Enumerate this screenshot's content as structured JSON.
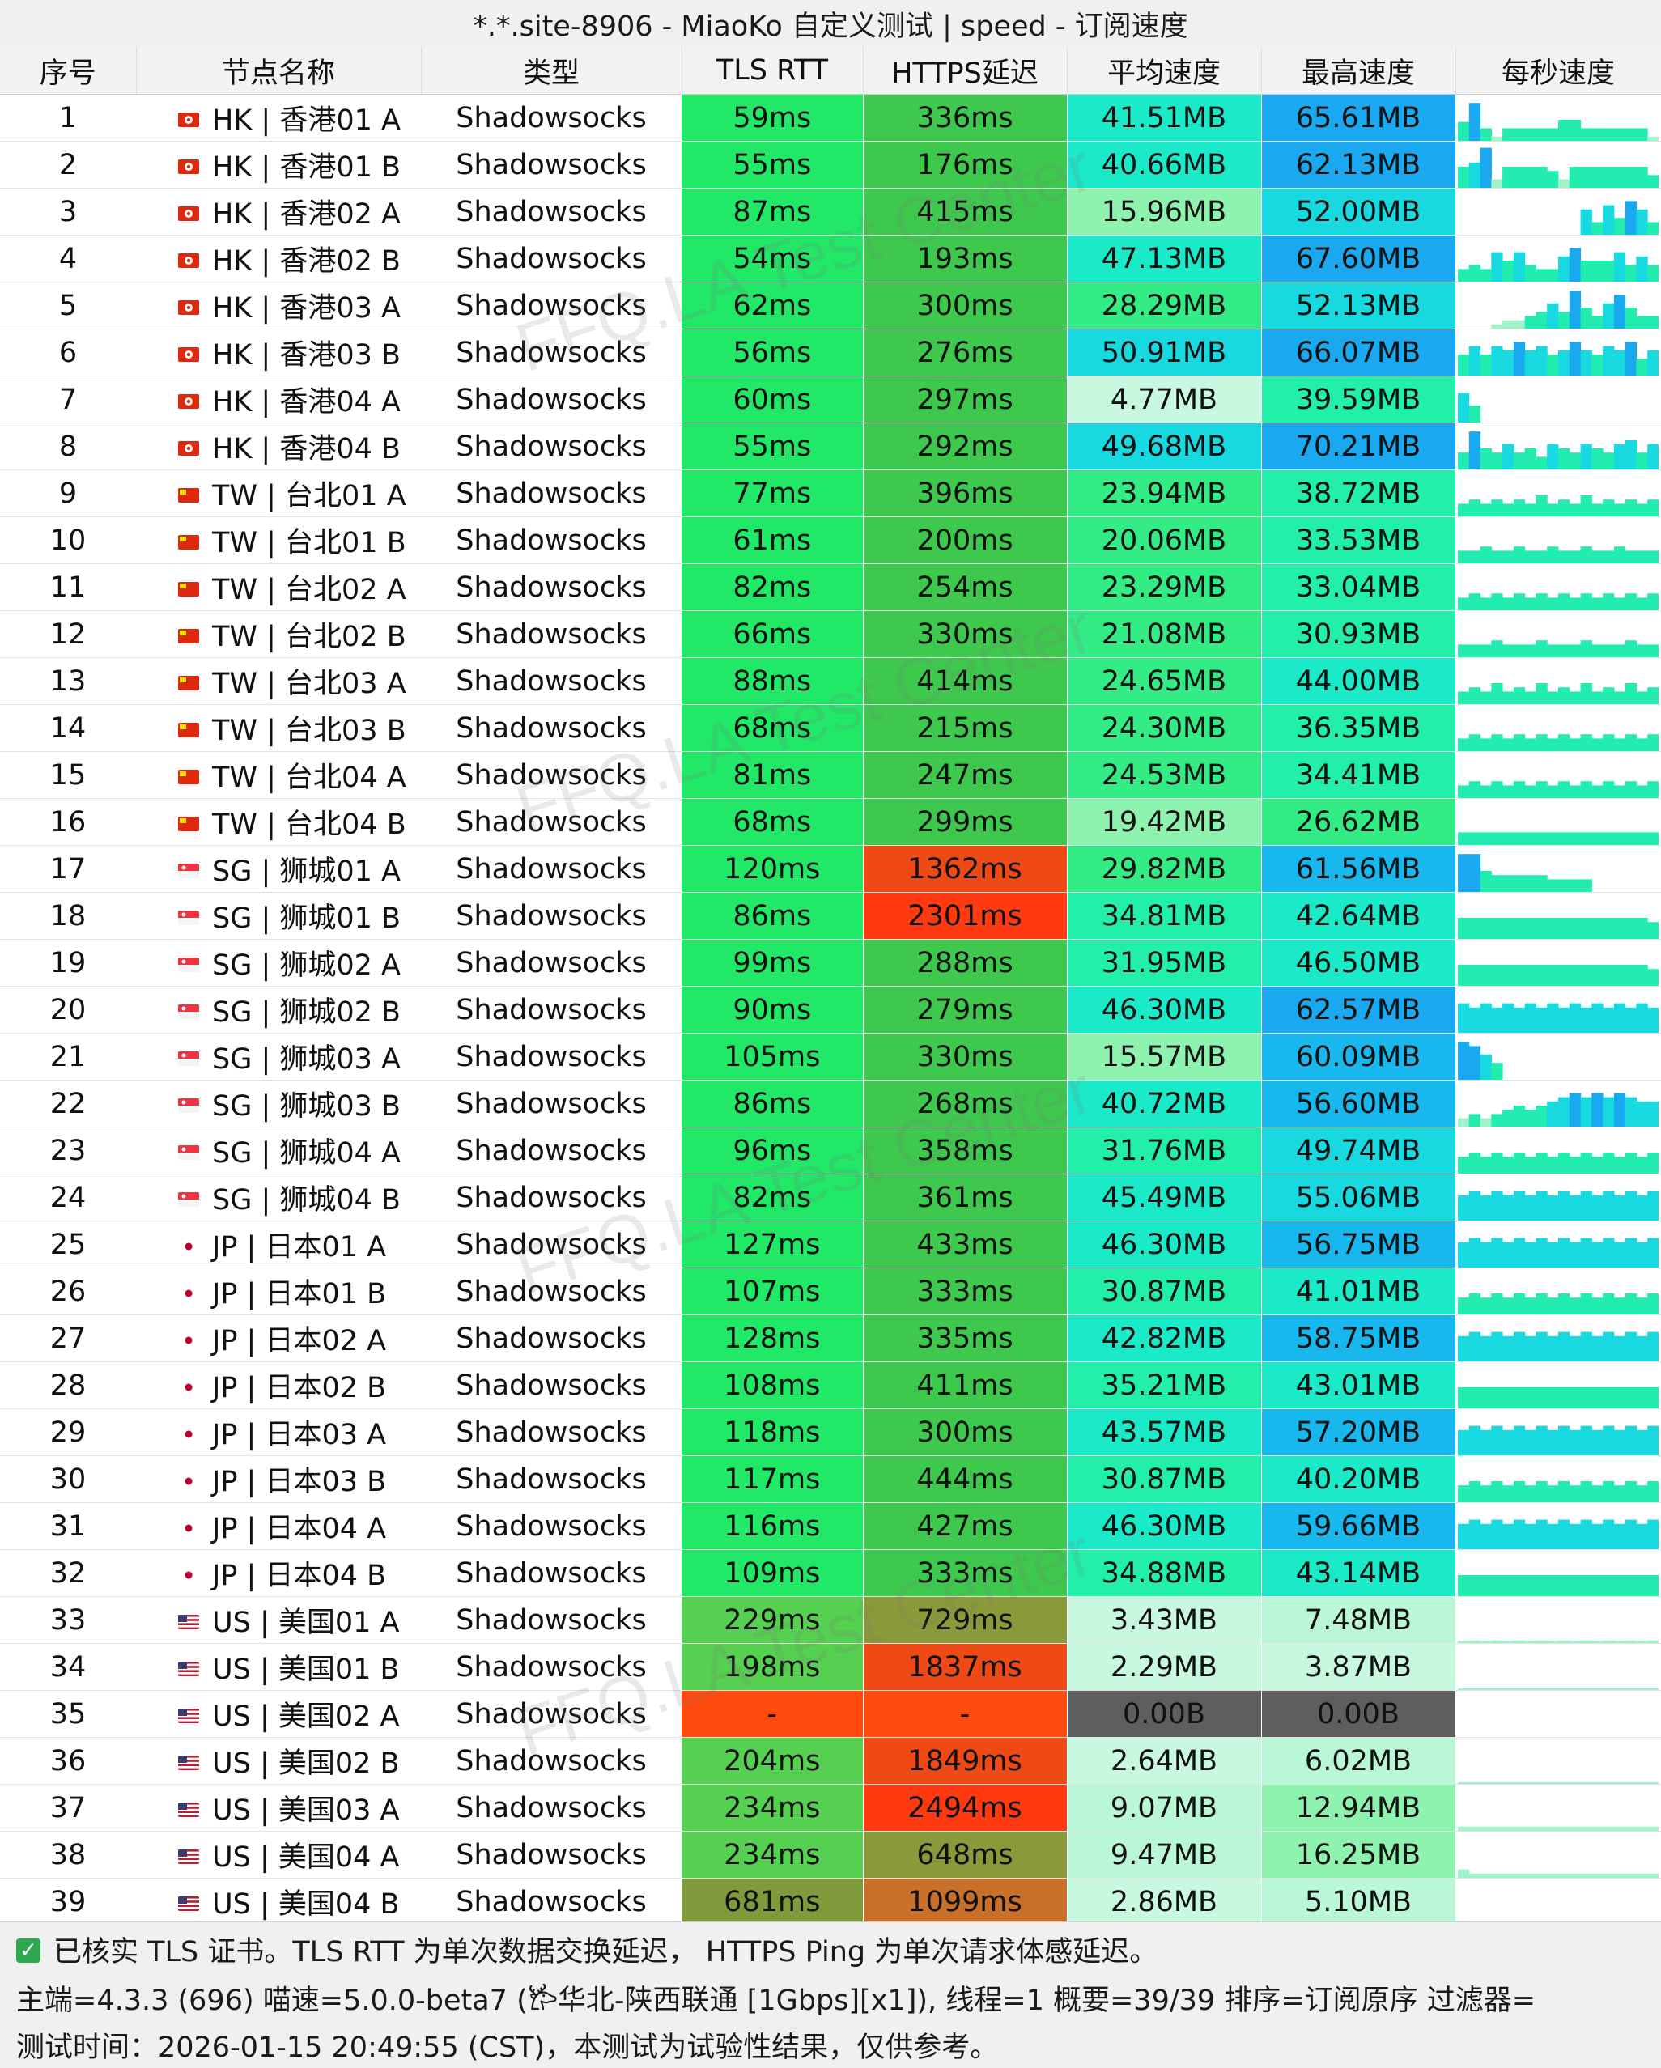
{
  "title": "*.*.site-8906 - MiaoKo 自定义测试 | speed - 订阅速度",
  "columns": [
    "序号",
    "节点名称",
    "类型",
    "TLS RTT",
    "HTTPS延迟",
    "平均速度",
    "最高速度",
    "每秒速度"
  ],
  "rows": [
    {
      "idx": "1",
      "flag": "HK",
      "name": "HK | 香港01 A",
      "type": "Shadowsocks",
      "tls": "59ms",
      "https": "336ms",
      "avg": "41.51MB",
      "max": "65.61MB",
      "spark": [
        0.45,
        0.9,
        0.3,
        0.1,
        0.3,
        0.3,
        0.3,
        0.3,
        0.3,
        0.5,
        0.5,
        0.3,
        0.3,
        0.3,
        0.3,
        0.3,
        0.3,
        0.1
      ]
    },
    {
      "idx": "2",
      "flag": "HK",
      "name": "HK | 香港01 B",
      "type": "Shadowsocks",
      "tls": "55ms",
      "https": "176ms",
      "avg": "40.66MB",
      "max": "62.13MB",
      "spark": [
        0.5,
        0.6,
        0.95,
        0.2,
        0.5,
        0.5,
        0.5,
        0.5,
        0.4,
        0.2,
        0.5,
        0.5,
        0.5,
        0.5,
        0.5,
        0.5,
        0.5,
        0.3
      ]
    },
    {
      "idx": "3",
      "flag": "HK",
      "name": "HK | 香港02 A",
      "type": "Shadowsocks",
      "tls": "87ms",
      "https": "415ms",
      "avg": "15.96MB",
      "max": "52.00MB",
      "spark": [
        0,
        0,
        0,
        0,
        0,
        0,
        0,
        0,
        0,
        0,
        0,
        0.6,
        0.3,
        0.7,
        0.4,
        0.8,
        0.6,
        0.3
      ]
    },
    {
      "idx": "4",
      "flag": "HK",
      "name": "HK | 香港02 B",
      "type": "Shadowsocks",
      "tls": "54ms",
      "https": "193ms",
      "avg": "47.13MB",
      "max": "67.60MB",
      "spark": [
        0.3,
        0.4,
        0.3,
        0.7,
        0.5,
        0.7,
        0.4,
        0.3,
        0.3,
        0.6,
        0.8,
        0.5,
        0.5,
        0.5,
        0.7,
        0.4,
        0.6,
        0.4
      ]
    },
    {
      "idx": "5",
      "flag": "HK",
      "name": "HK | 香港03 A",
      "type": "Shadowsocks",
      "tls": "62ms",
      "https": "300ms",
      "avg": "28.29MB",
      "max": "52.13MB",
      "spark": [
        0,
        0,
        0,
        0.1,
        0.2,
        0.2,
        0.3,
        0.4,
        0.6,
        0.4,
        0.9,
        0.5,
        0.3,
        0.6,
        0.8,
        0.5,
        0.3,
        0.3
      ]
    },
    {
      "idx": "6",
      "flag": "HK",
      "name": "HK | 香港03 B",
      "type": "Shadowsocks",
      "tls": "56ms",
      "https": "276ms",
      "avg": "50.91MB",
      "max": "66.07MB",
      "spark": [
        0.5,
        0.7,
        0.5,
        0.7,
        0.6,
        0.8,
        0.6,
        0.7,
        0.5,
        0.6,
        0.8,
        0.6,
        0.5,
        0.7,
        0.6,
        0.8,
        0.4,
        0.6
      ]
    },
    {
      "idx": "7",
      "flag": "HK",
      "name": "HK | 香港04 A",
      "type": "Shadowsocks",
      "tls": "60ms",
      "https": "297ms",
      "avg": "4.77MB",
      "max": "39.59MB",
      "spark": [
        0.7,
        0.4,
        0,
        0,
        0,
        0,
        0,
        0,
        0,
        0,
        0,
        0,
        0,
        0,
        0,
        0,
        0,
        0
      ]
    },
    {
      "idx": "8",
      "flag": "HK",
      "name": "HK | 香港04 B",
      "type": "Shadowsocks",
      "tls": "55ms",
      "https": "292ms",
      "avg": "49.68MB",
      "max": "70.21MB",
      "spark": [
        0.4,
        0.9,
        0.5,
        0.4,
        0.6,
        0.4,
        0.5,
        0.3,
        0.6,
        0.5,
        0.4,
        0.6,
        0.5,
        0.4,
        0.6,
        0.7,
        0.4,
        0.6
      ]
    },
    {
      "idx": "9",
      "flag": "TW",
      "name": "TW | 台北01 A",
      "type": "Shadowsocks",
      "tls": "77ms",
      "https": "396ms",
      "avg": "23.94MB",
      "max": "38.72MB",
      "spark": [
        0.3,
        0.4,
        0.3,
        0.4,
        0.3,
        0.4,
        0.3,
        0.5,
        0.3,
        0.4,
        0.3,
        0.5,
        0.3,
        0.4,
        0.3,
        0.4,
        0.3,
        0.4
      ]
    },
    {
      "idx": "10",
      "flag": "TW",
      "name": "TW | 台北01 B",
      "type": "Shadowsocks",
      "tls": "61ms",
      "https": "200ms",
      "avg": "20.06MB",
      "max": "33.53MB",
      "spark": [
        0.3,
        0.3,
        0.4,
        0.3,
        0.3,
        0.4,
        0.3,
        0.3,
        0.4,
        0.3,
        0.3,
        0.4,
        0.3,
        0.3,
        0.4,
        0.3,
        0.3,
        0.3
      ]
    },
    {
      "idx": "11",
      "flag": "TW",
      "name": "TW | 台北02 A",
      "type": "Shadowsocks",
      "tls": "82ms",
      "https": "254ms",
      "avg": "23.29MB",
      "max": "33.04MB",
      "spark": [
        0.3,
        0.4,
        0.3,
        0.4,
        0.3,
        0.4,
        0.3,
        0.4,
        0.3,
        0.4,
        0.3,
        0.4,
        0.3,
        0.4,
        0.3,
        0.4,
        0.3,
        0.4
      ]
    },
    {
      "idx": "12",
      "flag": "TW",
      "name": "TW | 台北02 B",
      "type": "Shadowsocks",
      "tls": "66ms",
      "https": "330ms",
      "avg": "21.08MB",
      "max": "30.93MB",
      "spark": [
        0.3,
        0.3,
        0.3,
        0.4,
        0.3,
        0.3,
        0.3,
        0.4,
        0.3,
        0.3,
        0.3,
        0.4,
        0.3,
        0.3,
        0.3,
        0.4,
        0.3,
        0.3
      ]
    },
    {
      "idx": "13",
      "flag": "TW",
      "name": "TW | 台北03 A",
      "type": "Shadowsocks",
      "tls": "88ms",
      "https": "414ms",
      "avg": "24.65MB",
      "max": "44.00MB",
      "spark": [
        0.3,
        0.4,
        0.3,
        0.5,
        0.3,
        0.4,
        0.3,
        0.5,
        0.3,
        0.4,
        0.3,
        0.5,
        0.3,
        0.4,
        0.3,
        0.5,
        0.3,
        0.4
      ]
    },
    {
      "idx": "14",
      "flag": "TW",
      "name": "TW | 台北03 B",
      "type": "Shadowsocks",
      "tls": "68ms",
      "https": "215ms",
      "avg": "24.30MB",
      "max": "36.35MB",
      "spark": [
        0.3,
        0.4,
        0.3,
        0.4,
        0.3,
        0.4,
        0.3,
        0.4,
        0.3,
        0.4,
        0.3,
        0.4,
        0.3,
        0.4,
        0.3,
        0.4,
        0.3,
        0.4
      ]
    },
    {
      "idx": "15",
      "flag": "TW",
      "name": "TW | 台北04 A",
      "type": "Shadowsocks",
      "tls": "81ms",
      "https": "247ms",
      "avg": "24.53MB",
      "max": "34.41MB",
      "spark": [
        0.3,
        0.4,
        0.3,
        0.4,
        0.3,
        0.4,
        0.3,
        0.4,
        0.3,
        0.4,
        0.3,
        0.4,
        0.3,
        0.4,
        0.3,
        0.4,
        0.3,
        0.4
      ]
    },
    {
      "idx": "16",
      "flag": "TW",
      "name": "TW | 台北04 B",
      "type": "Shadowsocks",
      "tls": "68ms",
      "https": "299ms",
      "avg": "19.42MB",
      "max": "26.62MB",
      "spark": [
        0.3,
        0.3,
        0.3,
        0.3,
        0.3,
        0.3,
        0.3,
        0.3,
        0.3,
        0.3,
        0.3,
        0.3,
        0.3,
        0.3,
        0.3,
        0.3,
        0.3,
        0.3
      ]
    },
    {
      "idx": "17",
      "flag": "SG",
      "name": "SG | 狮城01 A",
      "type": "Shadowsocks",
      "tls": "120ms",
      "https": "1362ms",
      "avg": "29.82MB",
      "max": "61.56MB",
      "spark": [
        0.9,
        0.9,
        0.5,
        0.4,
        0.4,
        0.4,
        0.4,
        0.4,
        0.3,
        0.3,
        0.3,
        0.3,
        0,
        0,
        0,
        0,
        0,
        0
      ]
    },
    {
      "idx": "18",
      "flag": "SG",
      "name": "SG | 狮城01 B",
      "type": "Shadowsocks",
      "tls": "86ms",
      "https": "2301ms",
      "avg": "34.81MB",
      "max": "42.64MB",
      "spark": [
        0.5,
        0.5,
        0.5,
        0.5,
        0.5,
        0.5,
        0.5,
        0.5,
        0.5,
        0.5,
        0.5,
        0.5,
        0.5,
        0.5,
        0.5,
        0.5,
        0.5,
        0.4
      ]
    },
    {
      "idx": "19",
      "flag": "SG",
      "name": "SG | 狮城02 A",
      "type": "Shadowsocks",
      "tls": "99ms",
      "https": "288ms",
      "avg": "31.95MB",
      "max": "46.50MB",
      "spark": [
        0.5,
        0.5,
        0.5,
        0.5,
        0.5,
        0.5,
        0.5,
        0.5,
        0.5,
        0.5,
        0.5,
        0.5,
        0.5,
        0.5,
        0.5,
        0.5,
        0.5,
        0.4
      ]
    },
    {
      "idx": "20",
      "flag": "SG",
      "name": "SG | 狮城02 B",
      "type": "Shadowsocks",
      "tls": "90ms",
      "https": "279ms",
      "avg": "46.30MB",
      "max": "62.57MB",
      "spark": [
        0.7,
        0.6,
        0.7,
        0.6,
        0.7,
        0.6,
        0.7,
        0.6,
        0.7,
        0.6,
        0.7,
        0.6,
        0.7,
        0.6,
        0.7,
        0.6,
        0.7,
        0.6
      ]
    },
    {
      "idx": "21",
      "flag": "SG",
      "name": "SG | 狮城03 A",
      "type": "Shadowsocks",
      "tls": "105ms",
      "https": "330ms",
      "avg": "15.57MB",
      "max": "60.09MB",
      "spark": [
        0.9,
        0.8,
        0.6,
        0.4,
        0,
        0,
        0,
        0,
        0,
        0,
        0,
        0,
        0,
        0,
        0,
        0,
        0,
        0
      ]
    },
    {
      "idx": "22",
      "flag": "SG",
      "name": "SG | 狮城03 B",
      "type": "Shadowsocks",
      "tls": "86ms",
      "https": "268ms",
      "avg": "40.72MB",
      "max": "56.60MB",
      "spark": [
        0.2,
        0.3,
        0.2,
        0.3,
        0.4,
        0.5,
        0.4,
        0.5,
        0.6,
        0.7,
        0.8,
        0.7,
        0.8,
        0.7,
        0.8,
        0.7,
        0.6,
        0.6
      ]
    },
    {
      "idx": "23",
      "flag": "SG",
      "name": "SG | 狮城04 A",
      "type": "Shadowsocks",
      "tls": "96ms",
      "https": "358ms",
      "avg": "31.76MB",
      "max": "49.74MB",
      "spark": [
        0.4,
        0.5,
        0.4,
        0.5,
        0.4,
        0.5,
        0.4,
        0.5,
        0.4,
        0.5,
        0.4,
        0.5,
        0.4,
        0.5,
        0.4,
        0.5,
        0.4,
        0.5
      ]
    },
    {
      "idx": "24",
      "flag": "SG",
      "name": "SG | 狮城04 B",
      "type": "Shadowsocks",
      "tls": "82ms",
      "https": "361ms",
      "avg": "45.49MB",
      "max": "55.06MB",
      "spark": [
        0.6,
        0.7,
        0.6,
        0.7,
        0.6,
        0.7,
        0.6,
        0.7,
        0.6,
        0.7,
        0.6,
        0.7,
        0.6,
        0.7,
        0.6,
        0.7,
        0.6,
        0.7
      ]
    },
    {
      "idx": "25",
      "flag": "JP",
      "name": "JP | 日本01 A",
      "type": "Shadowsocks",
      "tls": "127ms",
      "https": "433ms",
      "avg": "46.30MB",
      "max": "56.75MB",
      "spark": [
        0.6,
        0.7,
        0.6,
        0.7,
        0.6,
        0.7,
        0.6,
        0.7,
        0.6,
        0.7,
        0.6,
        0.7,
        0.6,
        0.7,
        0.6,
        0.7,
        0.6,
        0.7
      ]
    },
    {
      "idx": "26",
      "flag": "JP",
      "name": "JP | 日本01 B",
      "type": "Shadowsocks",
      "tls": "107ms",
      "https": "333ms",
      "avg": "30.87MB",
      "max": "41.01MB",
      "spark": [
        0.4,
        0.5,
        0.4,
        0.5,
        0.4,
        0.5,
        0.4,
        0.5,
        0.4,
        0.5,
        0.4,
        0.5,
        0.4,
        0.5,
        0.4,
        0.5,
        0.4,
        0.5
      ]
    },
    {
      "idx": "27",
      "flag": "JP",
      "name": "JP | 日本02 A",
      "type": "Shadowsocks",
      "tls": "128ms",
      "https": "335ms",
      "avg": "42.82MB",
      "max": "58.75MB",
      "spark": [
        0.6,
        0.7,
        0.6,
        0.7,
        0.6,
        0.7,
        0.6,
        0.7,
        0.6,
        0.7,
        0.6,
        0.7,
        0.6,
        0.7,
        0.6,
        0.7,
        0.6,
        0.7
      ]
    },
    {
      "idx": "28",
      "flag": "JP",
      "name": "JP | 日本02 B",
      "type": "Shadowsocks",
      "tls": "108ms",
      "https": "411ms",
      "avg": "35.21MB",
      "max": "43.01MB",
      "spark": [
        0.5,
        0.5,
        0.5,
        0.5,
        0.5,
        0.5,
        0.5,
        0.5,
        0.5,
        0.5,
        0.5,
        0.5,
        0.5,
        0.5,
        0.5,
        0.5,
        0.5,
        0.5
      ]
    },
    {
      "idx": "29",
      "flag": "JP",
      "name": "JP | 日本03 A",
      "type": "Shadowsocks",
      "tls": "118ms",
      "https": "300ms",
      "avg": "43.57MB",
      "max": "57.20MB",
      "spark": [
        0.6,
        0.7,
        0.6,
        0.7,
        0.6,
        0.7,
        0.6,
        0.7,
        0.6,
        0.7,
        0.6,
        0.7,
        0.6,
        0.7,
        0.6,
        0.7,
        0.6,
        0.7
      ]
    },
    {
      "idx": "30",
      "flag": "JP",
      "name": "JP | 日本03 B",
      "type": "Shadowsocks",
      "tls": "117ms",
      "https": "444ms",
      "avg": "30.87MB",
      "max": "40.20MB",
      "spark": [
        0.4,
        0.5,
        0.4,
        0.5,
        0.4,
        0.5,
        0.4,
        0.5,
        0.4,
        0.5,
        0.4,
        0.5,
        0.4,
        0.5,
        0.4,
        0.5,
        0.4,
        0.5
      ]
    },
    {
      "idx": "31",
      "flag": "JP",
      "name": "JP | 日本04 A",
      "type": "Shadowsocks",
      "tls": "116ms",
      "https": "427ms",
      "avg": "46.30MB",
      "max": "59.66MB",
      "spark": [
        0.6,
        0.7,
        0.6,
        0.7,
        0.6,
        0.7,
        0.6,
        0.7,
        0.6,
        0.7,
        0.6,
        0.7,
        0.6,
        0.7,
        0.6,
        0.7,
        0.6,
        0.7
      ]
    },
    {
      "idx": "32",
      "flag": "JP",
      "name": "JP | 日本04 B",
      "type": "Shadowsocks",
      "tls": "109ms",
      "https": "333ms",
      "avg": "34.88MB",
      "max": "43.14MB",
      "spark": [
        0.5,
        0.5,
        0.5,
        0.5,
        0.5,
        0.5,
        0.5,
        0.5,
        0.5,
        0.5,
        0.5,
        0.5,
        0.5,
        0.5,
        0.5,
        0.5,
        0.5,
        0.5
      ]
    },
    {
      "idx": "33",
      "flag": "US",
      "name": "US | 美国01 A",
      "type": "Shadowsocks",
      "tls": "229ms",
      "https": "729ms",
      "avg": "3.43MB",
      "max": "7.48MB",
      "spark": [
        0.05,
        0.06,
        0.05,
        0.06,
        0.05,
        0.06,
        0.05,
        0.06,
        0.05,
        0.06,
        0.05,
        0.06,
        0.05,
        0.06,
        0.05,
        0.06,
        0.05,
        0.06
      ]
    },
    {
      "idx": "34",
      "flag": "US",
      "name": "US | 美国01 B",
      "type": "Shadowsocks",
      "tls": "198ms",
      "https": "1837ms",
      "avg": "2.29MB",
      "max": "3.87MB",
      "spark": [
        0.03,
        0.03,
        0.03,
        0.03,
        0.03,
        0.03,
        0.03,
        0.03,
        0.03,
        0.03,
        0.03,
        0.03,
        0.03,
        0.03,
        0.03,
        0.03,
        0.03,
        0.03
      ]
    },
    {
      "idx": "35",
      "flag": "US",
      "name": "US | 美国02 A",
      "type": "Shadowsocks",
      "tls": "-",
      "https": "-",
      "avg": "0.00B",
      "max": "0.00B",
      "spark": [
        0,
        0,
        0,
        0,
        0,
        0,
        0,
        0,
        0,
        0,
        0,
        0,
        0,
        0,
        0,
        0,
        0,
        0
      ]
    },
    {
      "idx": "36",
      "flag": "US",
      "name": "US | 美国02 B",
      "type": "Shadowsocks",
      "tls": "204ms",
      "https": "1849ms",
      "avg": "2.64MB",
      "max": "6.02MB",
      "spark": [
        0.04,
        0.04,
        0.04,
        0.04,
        0.04,
        0.04,
        0.04,
        0.04,
        0.04,
        0.04,
        0.04,
        0.04,
        0.04,
        0.04,
        0.04,
        0.04,
        0.04,
        0.04
      ]
    },
    {
      "idx": "37",
      "flag": "US",
      "name": "US | 美国03 A",
      "type": "Shadowsocks",
      "tls": "234ms",
      "https": "2494ms",
      "avg": "9.07MB",
      "max": "12.94MB",
      "spark": [
        0.1,
        0.1,
        0.1,
        0.1,
        0.1,
        0.1,
        0.1,
        0.1,
        0.1,
        0.1,
        0.1,
        0.1,
        0.1,
        0.1,
        0.1,
        0.1,
        0.1,
        0.1
      ]
    },
    {
      "idx": "38",
      "flag": "US",
      "name": "US | 美国04 A",
      "type": "Shadowsocks",
      "tls": "234ms",
      "https": "648ms",
      "avg": "9.47MB",
      "max": "16.25MB",
      "spark": [
        0.2,
        0.1,
        0.1,
        0.1,
        0.1,
        0.1,
        0.1,
        0.1,
        0.1,
        0.1,
        0.1,
        0.1,
        0.1,
        0.1,
        0.1,
        0.1,
        0.1,
        0.1
      ]
    },
    {
      "idx": "39",
      "flag": "US",
      "name": "US | 美国04 B",
      "type": "Shadowsocks",
      "tls": "681ms",
      "https": "1099ms",
      "avg": "2.86MB",
      "max": "5.10MB",
      "spark": [
        0.03,
        0.04,
        0.03,
        0.04,
        0.03,
        0.04,
        0.03,
        0.04,
        0.03,
        0.04,
        0.03,
        0.04,
        0.03,
        0.04,
        0.03,
        0.04,
        0.03,
        0.04
      ]
    }
  ],
  "cell_colors": {
    "latency_green": "#22e868",
    "https_green": "#3ec94e",
    "https_olive": "#8a9a3a",
    "https_orange_red": "#f04018",
    "fail_red": "#ff4a10",
    "zero_gray": "#5e5e5e",
    "speed_pale": "#b9f7d6",
    "speed_aqua": "#18f0c0",
    "speed_blue": "#1aa8f0"
  },
  "footer": {
    "note": "已核实 TLS 证书。TLS RTT 为单次数据交换延迟， HTTPS Ping 为单次请求体感延迟。",
    "info": "主端=4.3.3 (696) 喵速=5.0.0-beta7 (𐂂华北-陕西联通 [1Gbps][x1]), 线程=1 概要=39/39 排序=订阅原序 过滤器=",
    "time": "测试时间：2026-01-15 20:49:55 (CST)，本测试为试验性结果，仅供参考。"
  },
  "watermark": "FFQ.LA Test Center"
}
